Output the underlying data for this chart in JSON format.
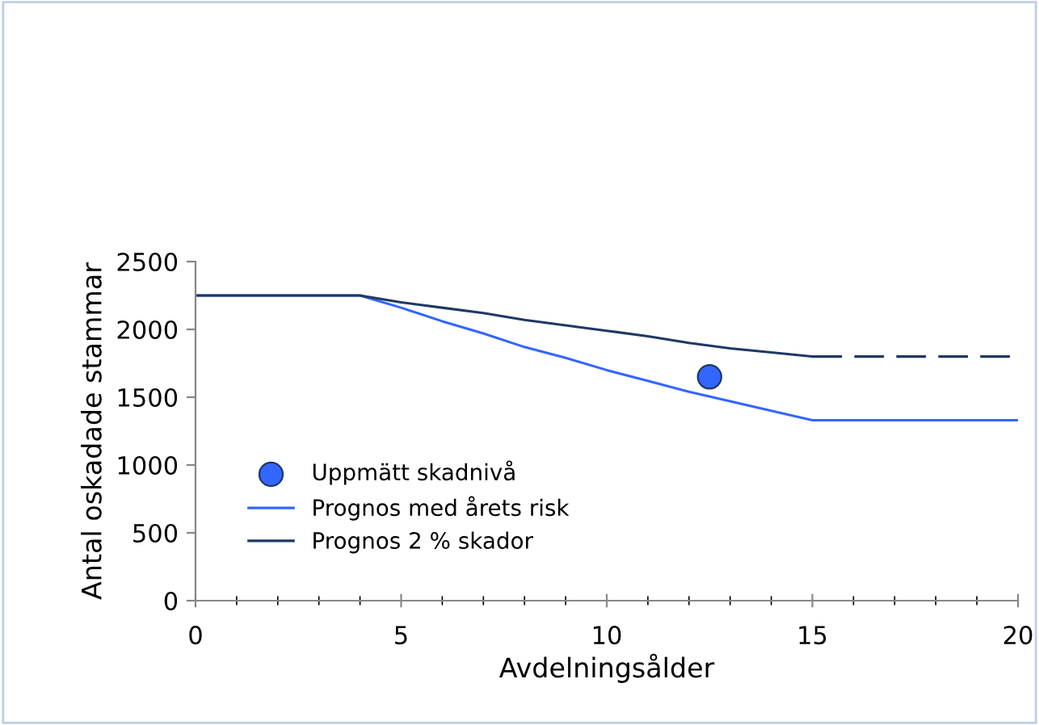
{
  "chart_data": {
    "type": "line",
    "xlabel": "Avdelningsålder",
    "ylabel": "Antal oskadade stammar",
    "xlim": [
      0,
      20
    ],
    "xticks": [
      0,
      5,
      10,
      15,
      20
    ],
    "ylim": [
      0,
      2500
    ],
    "yticks": [
      0,
      500,
      1000,
      1500,
      2000,
      2500
    ],
    "grid": false,
    "legend": "bottom left",
    "series": [
      {
        "name": "Uppmätt skadnivå",
        "type": "scatter",
        "marker": "circle",
        "color": "#3366ff",
        "x": [
          12.5
        ],
        "values": [
          1650
        ]
      },
      {
        "name": "Prognos med årets risk",
        "color": "#3366ff",
        "line_style": "solid",
        "x": [
          0,
          4,
          5,
          6,
          7,
          8,
          9,
          10,
          11,
          12,
          13,
          14,
          15,
          20
        ],
        "values": [
          2250,
          2250,
          2160,
          2060,
          1970,
          1870,
          1790,
          1700,
          1620,
          1540,
          1470,
          1400,
          1330,
          1330
        ]
      },
      {
        "name": "Prognos 2 % skador",
        "color": "#1f3864",
        "line_style": "solid",
        "x": [
          0,
          4,
          5,
          6,
          7,
          8,
          9,
          10,
          11,
          12,
          13,
          14,
          15
        ],
        "values": [
          2250,
          2250,
          2200,
          2160,
          2120,
          2070,
          2030,
          1990,
          1950,
          1900,
          1860,
          1830,
          1800
        ]
      },
      {
        "color": "#1f3864",
        "line_style": "dashed",
        "x": [
          15,
          20
        ],
        "values": [
          1800,
          1800
        ]
      }
    ]
  }
}
